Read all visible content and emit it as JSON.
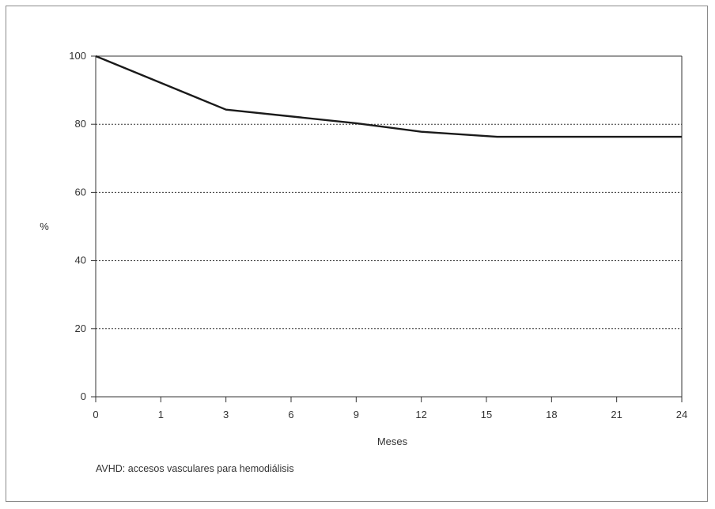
{
  "chart_data": {
    "type": "line",
    "title": "",
    "xlabel": "Meses",
    "ylabel": "%",
    "x_ticks": [
      "0",
      "1",
      "3",
      "6",
      "9",
      "12",
      "15",
      "18",
      "21",
      "24"
    ],
    "y_ticks": [
      "0",
      "20",
      "40",
      "60",
      "80",
      "100"
    ],
    "ylim": [
      0,
      100
    ],
    "grid": "horizontal dotted",
    "legend": "none",
    "line_color": "#1a1a1a",
    "series": [
      {
        "x": [
          0,
          3,
          9,
          12,
          15.5,
          24
        ],
        "values": [
          100,
          84.3,
          80.3,
          77.8,
          76.3,
          76.3
        ]
      }
    ]
  },
  "footnote": "AVHD: accesos vasculares para hemodiálisis"
}
